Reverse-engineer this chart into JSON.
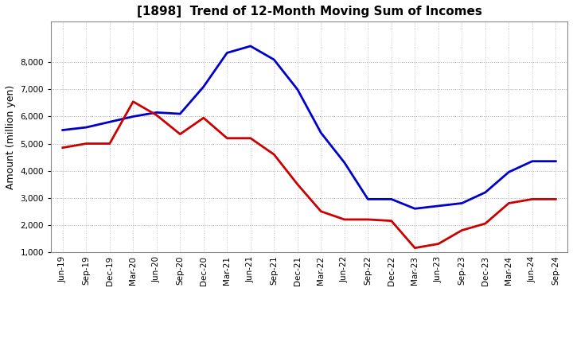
{
  "title": "[1898]  Trend of 12-Month Moving Sum of Incomes",
  "ylabel": "Amount (million yen)",
  "ylim_min": 1000,
  "ylim_max": 9000,
  "yticks": [
    1000,
    2000,
    3000,
    4000,
    5000,
    6000,
    7000,
    8000
  ],
  "fig_color": "#ffffff",
  "plot_area_color": "#ffffff",
  "grid_color": "#aaaaaa",
  "x_labels": [
    "Jun-19",
    "Sep-19",
    "Dec-19",
    "Mar-20",
    "Jun-20",
    "Sep-20",
    "Dec-20",
    "Mar-21",
    "Jun-21",
    "Sep-21",
    "Dec-21",
    "Mar-22",
    "Jun-22",
    "Sep-22",
    "Dec-22",
    "Mar-23",
    "Jun-23",
    "Sep-23",
    "Dec-23",
    "Mar-24",
    "Jun-24",
    "Sep-24"
  ],
  "ordinary_income": [
    5500,
    5600,
    5800,
    6000,
    6150,
    6100,
    7100,
    8350,
    8600,
    8100,
    7000,
    5400,
    4300,
    2950,
    2950,
    2600,
    2700,
    2800,
    3200,
    3950,
    4350,
    4350
  ],
  "net_income": [
    4850,
    5000,
    5000,
    6550,
    6050,
    5350,
    5950,
    5200,
    5200,
    4600,
    3500,
    2500,
    2200,
    2200,
    2150,
    1150,
    1300,
    1800,
    2050,
    2800,
    2950,
    2950
  ],
  "ordinary_color": "#0000cc",
  "net_color": "#cc0000",
  "title_fontsize": 11,
  "axis_fontsize": 7.5,
  "ylabel_fontsize": 9,
  "legend_fontsize": 9,
  "linewidth": 2.0
}
